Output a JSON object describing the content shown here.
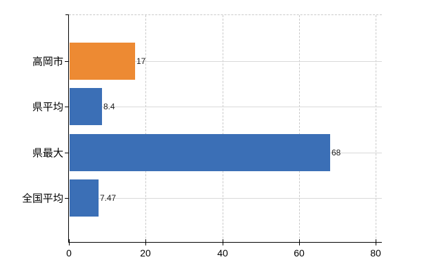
{
  "chart_data": {
    "type": "bar",
    "orientation": "horizontal",
    "title": "",
    "xlabel": "",
    "ylabel": "",
    "categories": [
      "高岡市",
      "県平均",
      "県最大",
      "全国平均"
    ],
    "values": [
      17,
      8.4,
      68,
      7.47
    ],
    "value_labels": [
      "17",
      "8.4",
      "68",
      "7.47"
    ],
    "bar_colors": [
      "#ED8A33",
      "#3B6FB6",
      "#3B6FB6",
      "#3B6FB6"
    ],
    "x_axis": {
      "ticks": [
        0,
        20,
        40,
        60,
        80
      ],
      "tick_labels": [
        "0",
        "20",
        "40",
        "60",
        "80"
      ],
      "range": [
        0,
        81.6
      ]
    },
    "legend": null,
    "grid": {
      "vertical_gridlines": "dashed",
      "horizontal_gridlines": "solid",
      "top_border": "dashed"
    }
  },
  "colors": {
    "background": "#FFFFFF",
    "axis": "#000000",
    "grid_solid": "#D9D9D9",
    "grid_dashed": "#C9C9C9",
    "text": "#000000",
    "highlight_bar": "#ED8A33",
    "default_bar": "#3B6FB6"
  }
}
